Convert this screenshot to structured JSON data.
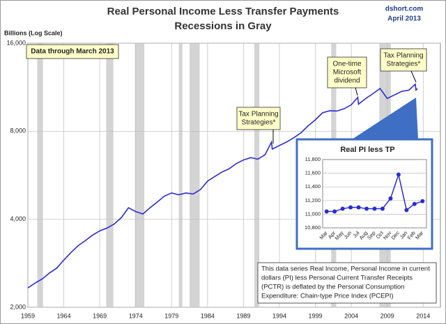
{
  "chart_data": [
    {
      "type": "line",
      "title": "Real Personal Income Less Transfer Payments",
      "subtitle": "Recessions in Gray",
      "source": [
        "dshort.com",
        "April 2013"
      ],
      "y_label": "Billions (Log Scale)",
      "log_y": true,
      "grid": true,
      "color": "#2b2bd6",
      "recession_color": "#d4d4d4",
      "xlim": [
        1959,
        2016.4
      ],
      "xticks": [
        1959,
        1964,
        1969,
        1974,
        1979,
        1984,
        1989,
        1994,
        1999,
        2004,
        2009,
        2014
      ],
      "ylim": [
        2000,
        16000
      ],
      "yticks": [
        {
          "value": 2000,
          "label": "2,000"
        },
        {
          "value": 4000,
          "label": "4,000"
        },
        {
          "value": 8000,
          "label": "8,000"
        },
        {
          "value": 16000,
          "label": "16,000"
        }
      ],
      "recessions": [
        [
          1960.3,
          1961.1
        ],
        [
          1969.9,
          1970.9
        ],
        [
          1973.9,
          1975.2
        ],
        [
          1980.0,
          1980.5
        ],
        [
          1981.5,
          1982.9
        ],
        [
          1990.5,
          1991.2
        ],
        [
          2001.2,
          2001.9
        ],
        [
          2007.9,
          2009.5
        ]
      ],
      "x": [
        1959,
        1960,
        1961,
        1962,
        1963,
        1964,
        1965,
        1966,
        1967,
        1968,
        1969,
        1970,
        1971,
        1972,
        1973,
        1974,
        1975,
        1976,
        1977,
        1978,
        1979,
        1980,
        1981,
        1982,
        1983,
        1984,
        1985,
        1986,
        1987,
        1988,
        1989,
        1990,
        1991,
        1992,
        1992.9,
        1993,
        1994,
        1995,
        1996,
        1997,
        1998,
        1999,
        2000,
        2001,
        2002,
        2003,
        2004,
        2004.9,
        2005,
        2006,
        2007,
        2008,
        2009,
        2010,
        2011,
        2012,
        2012.9,
        2013,
        2013.2
      ],
      "values": [
        2330,
        2420,
        2500,
        2620,
        2720,
        2900,
        3080,
        3250,
        3380,
        3530,
        3650,
        3730,
        3850,
        4050,
        4380,
        4250,
        4170,
        4380,
        4580,
        4800,
        4920,
        4850,
        4920,
        4880,
        5050,
        5400,
        5600,
        5800,
        5950,
        6200,
        6380,
        6500,
        6420,
        6650,
        7350,
        6950,
        7150,
        7350,
        7600,
        7900,
        8350,
        8750,
        9250,
        9400,
        9380,
        9550,
        9850,
        10450,
        9900,
        10350,
        10750,
        11200,
        10350,
        10650,
        10950,
        11050,
        11580,
        11060,
        11190
      ],
      "annotations": [
        {
          "lines": [
            "Data through March 2013"
          ]
        },
        {
          "lines": [
            "Tax Planning",
            "Strategies*"
          ]
        },
        {
          "lines": [
            "One-time",
            "Microsoft",
            "dividend"
          ]
        },
        {
          "lines": [
            "Tax Planning",
            "Strategies*"
          ]
        },
        {
          "lines": [
            "This data series  Real Income, Personal Income in current",
            "dollars  (PI) less Personal Current Transfer Receipts",
            "(PCTR) is deflated by the Personal Consumption",
            "Expenditure: Chain-type Price Index (PCEPI)"
          ]
        }
      ]
    },
    {
      "type": "line",
      "title": "Real PI less TP",
      "color": "#2b2bd6",
      "grid": true,
      "categories": [
        "Mar",
        "Apr",
        "May",
        "Jun",
        "Jul",
        "Aug",
        "Sep",
        "Oct",
        "Nov",
        "Dec",
        "Jan",
        "Feb",
        "Mar"
      ],
      "values": [
        11040,
        11040,
        11080,
        11100,
        11100,
        11080,
        11080,
        11080,
        11230,
        11580,
        11060,
        11150,
        11190
      ],
      "ylim": [
        10800,
        11800
      ],
      "yticks": [
        {
          "value": 10800,
          "label": "10,800"
        },
        {
          "value": 11000,
          "label": "11,000"
        },
        {
          "value": 11200,
          "label": "11,200"
        },
        {
          "value": 11400,
          "label": "11,400"
        },
        {
          "value": 11600,
          "label": "11,600"
        },
        {
          "value": 11800,
          "label": "11,800"
        }
      ]
    }
  ]
}
